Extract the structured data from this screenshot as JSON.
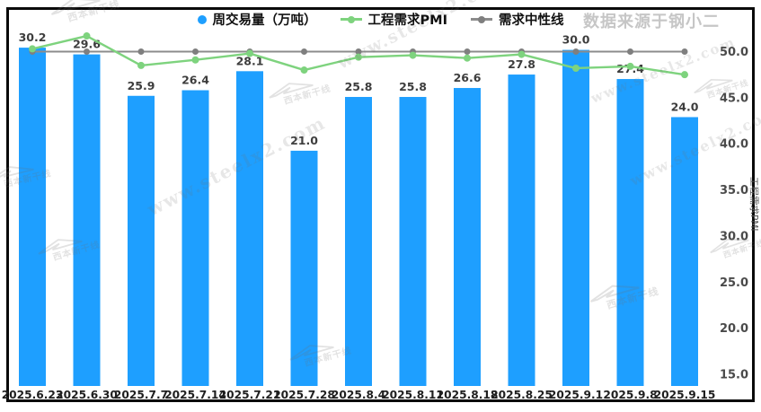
{
  "source_label": "数据来源于钢小二",
  "legend": {
    "volume": "周交易量（万吨）",
    "pmi": "工程需求PMI",
    "neutral": "需求中性线"
  },
  "colors": {
    "bar": "#1e9fff",
    "pmi_line": "#7ed37e",
    "neutral_line": "#8c8c8c",
    "neutral_dot": "#7f7f7f",
    "bar_label": "#3d3d3d",
    "axis_label": "#4a4a4a",
    "tick_label": "#1f1f1f",
    "axis_title": "#555555",
    "source": "#c6c6c6",
    "border": "#0a0a0a"
  },
  "right_axis": {
    "title": "工程需求PMI",
    "ticks": [
      50.0,
      45.0,
      40.0,
      35.0,
      30.0,
      25.0,
      20.0,
      15.0
    ]
  },
  "watermarks": {
    "url_text": "www.steelx2.com",
    "logo_text": "西本新干线"
  },
  "chart_data": {
    "type": "bar+line",
    "categories": [
      "2025.6.23",
      "2025.6.30",
      "2025.7.7",
      "2025.7.14",
      "2025.7.21",
      "2025.7.28",
      "2025.8.4",
      "2025.8.11",
      "2025.8.18",
      "2025.8.25",
      "2025.9.1",
      "2025.9.8",
      "2025.9.15"
    ],
    "series": [
      {
        "name": "周交易量（万吨）",
        "type": "bar",
        "values": [
          30.2,
          29.6,
          25.9,
          26.4,
          28.1,
          21.0,
          25.8,
          25.8,
          26.6,
          27.8,
          30.0,
          27.4,
          24.0
        ]
      },
      {
        "name": "工程需求PMI",
        "type": "line",
        "axis": "right",
        "values": [
          50.3,
          51.7,
          48.5,
          49.1,
          49.8,
          48.0,
          49.4,
          49.6,
          49.3,
          49.7,
          48.2,
          48.4,
          47.5
        ]
      },
      {
        "name": "需求中性线",
        "type": "line",
        "axis": "right",
        "values": [
          50.0,
          50.0,
          50.0,
          50.0,
          50.0,
          50.0,
          50.0,
          50.0,
          50.0,
          50.0,
          50.0,
          50.0,
          50.0
        ]
      }
    ],
    "title": "",
    "xlabel": "",
    "ylabel_right": "工程需求PMI",
    "right_ylim": [
      15,
      52.5
    ],
    "left_ylim": [
      0,
      32
    ],
    "bar_labels_shown": true,
    "grid": false,
    "legend_position": "top-center"
  }
}
